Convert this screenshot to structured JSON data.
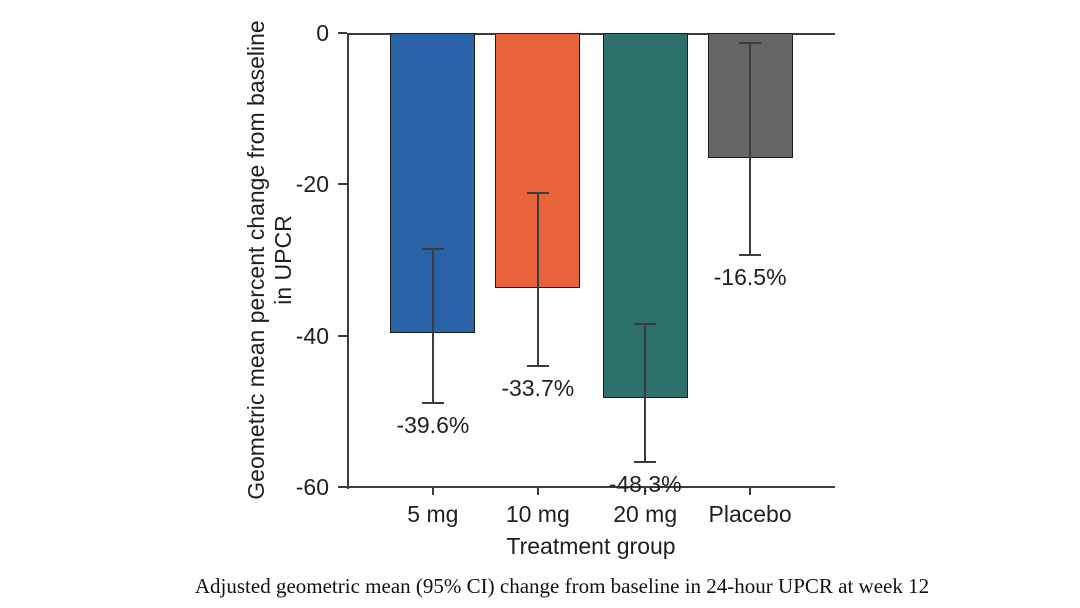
{
  "chart_data": {
    "type": "bar",
    "title": "Adjusted geometric mean (95% CI) change from baseline in 24-hour UPCR at week 12",
    "xlabel": "Treatment group",
    "ylabel": "Geometric mean percent change from baseline\nin UPCR",
    "categories": [
      "5 mg",
      "10 mg",
      "20 mg",
      "Placebo"
    ],
    "values": [
      -39.6,
      -33.7,
      -48.3,
      -16.5
    ],
    "value_labels": [
      "-39.6%",
      "-33.7%",
      "-48.3%",
      "-16.5%"
    ],
    "ci_upper": [
      -28.6,
      -21.1,
      -38.5,
      -1.3
    ],
    "ci_lower": [
      -48.9,
      -44.0,
      -56.7,
      -29.4
    ],
    "bar_colors": [
      "#2a62a8",
      "#e9633a",
      "#2e706c",
      "#666666"
    ],
    "error_bar_color": "#3c3c3c",
    "axis_color": "#3c3c3c",
    "text_color": "#1f1f1f",
    "ylim": [
      -60,
      0
    ],
    "yticks": [
      0,
      -20,
      -40,
      -60
    ],
    "ytick_labels": [
      "0",
      "-20",
      "-40",
      "-60"
    ],
    "grid": false,
    "legend": "none"
  }
}
